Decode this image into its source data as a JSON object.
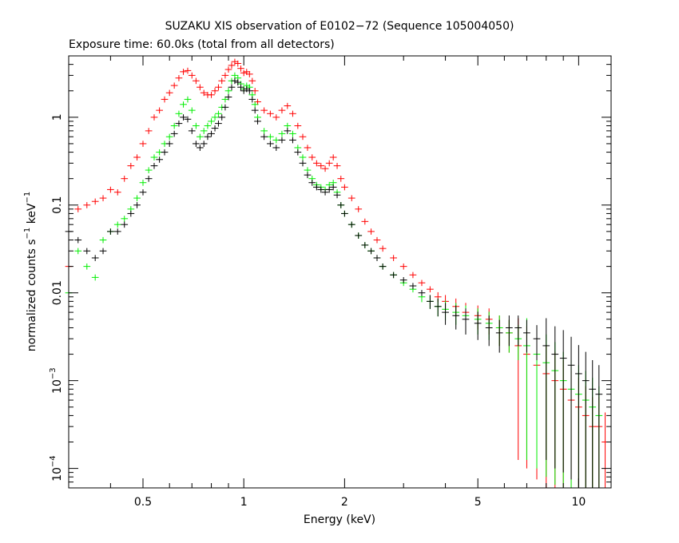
{
  "chart_data": {
    "type": "scatter",
    "title": "SUZAKU XIS observation of E0102−72 (Sequence 105004050)",
    "subtitle": "Exposure time: 60.0ks (total from all detectors)",
    "xlabel": "Energy (keV)",
    "ylabel": {
      "main": "normalized counts s",
      "exp1": "−1",
      "mid": " keV",
      "exp2": "−1"
    },
    "x_scale": "log",
    "y_scale": "log",
    "xlim": [
      0.3,
      12.5
    ],
    "ylim": [
      6e-05,
      5
    ],
    "x_ticks": [
      {
        "value": 0.5,
        "label": "0.5"
      },
      {
        "value": 1,
        "label": "1"
      },
      {
        "value": 2,
        "label": "2"
      },
      {
        "value": 5,
        "label": "5"
      },
      {
        "value": 10,
        "label": "10"
      }
    ],
    "y_ticks": [
      {
        "value": 1,
        "label": "1"
      },
      {
        "value": 0.1,
        "label": "0.1"
      },
      {
        "value": 0.01,
        "label": "0.01"
      },
      {
        "value": 0.001,
        "base": "10",
        "exp": "−3"
      },
      {
        "value": 0.0001,
        "base": "10",
        "exp": "−4"
      }
    ],
    "grid": false,
    "legend": "none",
    "series": [
      {
        "color": "#ff0000",
        "points": [
          [
            0.3,
            0.02
          ],
          [
            0.32,
            0.09
          ],
          [
            0.34,
            0.1
          ],
          [
            0.36,
            0.11
          ],
          [
            0.38,
            0.12
          ],
          [
            0.4,
            0.15
          ],
          [
            0.42,
            0.14
          ],
          [
            0.44,
            0.2
          ],
          [
            0.46,
            0.28
          ],
          [
            0.48,
            0.35
          ],
          [
            0.5,
            0.5
          ],
          [
            0.52,
            0.7
          ],
          [
            0.54,
            1.0
          ],
          [
            0.56,
            1.2
          ],
          [
            0.58,
            1.6
          ],
          [
            0.6,
            1.9
          ],
          [
            0.62,
            2.3
          ],
          [
            0.64,
            2.8
          ],
          [
            0.66,
            3.3
          ],
          [
            0.68,
            3.4
          ],
          [
            0.7,
            3.0
          ],
          [
            0.72,
            2.6
          ],
          [
            0.74,
            2.2
          ],
          [
            0.76,
            1.9
          ],
          [
            0.78,
            1.8
          ],
          [
            0.8,
            1.8
          ],
          [
            0.82,
            2.0
          ],
          [
            0.84,
            2.2
          ],
          [
            0.86,
            2.6
          ],
          [
            0.88,
            3.0
          ],
          [
            0.9,
            3.5
          ],
          [
            0.92,
            3.9
          ],
          [
            0.94,
            4.3
          ],
          [
            0.96,
            4.1
          ],
          [
            0.98,
            3.6
          ],
          [
            1.0,
            3.2
          ],
          [
            1.02,
            3.3
          ],
          [
            1.04,
            3.1
          ],
          [
            1.06,
            2.6
          ],
          [
            1.08,
            2.0
          ],
          [
            1.1,
            1.5
          ],
          [
            1.15,
            1.2
          ],
          [
            1.2,
            1.1
          ],
          [
            1.25,
            1.0
          ],
          [
            1.3,
            1.2
          ],
          [
            1.35,
            1.35
          ],
          [
            1.4,
            1.1
          ],
          [
            1.45,
            0.8
          ],
          [
            1.5,
            0.6
          ],
          [
            1.55,
            0.45
          ],
          [
            1.6,
            0.35
          ],
          [
            1.65,
            0.3
          ],
          [
            1.7,
            0.28
          ],
          [
            1.75,
            0.26
          ],
          [
            1.8,
            0.3
          ],
          [
            1.85,
            0.35
          ],
          [
            1.9,
            0.28
          ],
          [
            1.95,
            0.2
          ],
          [
            2.0,
            0.16
          ],
          [
            2.1,
            0.12
          ],
          [
            2.2,
            0.09
          ],
          [
            2.3,
            0.065
          ],
          [
            2.4,
            0.05
          ],
          [
            2.5,
            0.04
          ],
          [
            2.6,
            0.032
          ],
          [
            2.8,
            0.025
          ],
          [
            3.0,
            0.02
          ],
          [
            3.2,
            0.016
          ],
          [
            3.4,
            0.013
          ],
          [
            3.6,
            0.011
          ],
          [
            3.8,
            0.009
          ],
          [
            4.0,
            0.008
          ],
          [
            4.3,
            0.007
          ],
          [
            4.6,
            0.006
          ],
          [
            5.0,
            0.0055
          ],
          [
            5.4,
            0.005
          ],
          [
            5.8,
            0.004
          ],
          [
            6.2,
            0.0035
          ],
          [
            6.6,
            0.0025
          ],
          [
            7.0,
            0.002
          ],
          [
            7.5,
            0.0015
          ],
          [
            8.0,
            0.0012
          ],
          [
            8.5,
            0.001
          ],
          [
            9.0,
            0.0008
          ],
          [
            9.5,
            0.0006
          ],
          [
            10.0,
            0.0005
          ],
          [
            10.5,
            0.0004
          ],
          [
            11.0,
            0.0003
          ],
          [
            11.5,
            0.0003
          ],
          [
            12.0,
            0.0002
          ]
        ]
      },
      {
        "color": "#00ee00",
        "points": [
          [
            0.3,
            0.01
          ],
          [
            0.32,
            0.03
          ],
          [
            0.34,
            0.02
          ],
          [
            0.36,
            0.015
          ],
          [
            0.38,
            0.04
          ],
          [
            0.4,
            0.05
          ],
          [
            0.42,
            0.06
          ],
          [
            0.44,
            0.07
          ],
          [
            0.46,
            0.09
          ],
          [
            0.48,
            0.12
          ],
          [
            0.5,
            0.18
          ],
          [
            0.52,
            0.25
          ],
          [
            0.54,
            0.35
          ],
          [
            0.56,
            0.4
          ],
          [
            0.58,
            0.5
          ],
          [
            0.6,
            0.6
          ],
          [
            0.62,
            0.8
          ],
          [
            0.64,
            1.1
          ],
          [
            0.66,
            1.4
          ],
          [
            0.68,
            1.6
          ],
          [
            0.7,
            1.2
          ],
          [
            0.72,
            0.8
          ],
          [
            0.74,
            0.6
          ],
          [
            0.76,
            0.7
          ],
          [
            0.78,
            0.8
          ],
          [
            0.8,
            0.9
          ],
          [
            0.82,
            1.0
          ],
          [
            0.84,
            1.1
          ],
          [
            0.86,
            1.3
          ],
          [
            0.88,
            1.6
          ],
          [
            0.9,
            2.0
          ],
          [
            0.92,
            2.6
          ],
          [
            0.94,
            3.0
          ],
          [
            0.96,
            2.8
          ],
          [
            0.98,
            2.4
          ],
          [
            1.0,
            2.1
          ],
          [
            1.02,
            2.3
          ],
          [
            1.04,
            2.2
          ],
          [
            1.06,
            1.8
          ],
          [
            1.08,
            1.4
          ],
          [
            1.1,
            1.0
          ],
          [
            1.15,
            0.7
          ],
          [
            1.2,
            0.6
          ],
          [
            1.25,
            0.55
          ],
          [
            1.3,
            0.65
          ],
          [
            1.35,
            0.8
          ],
          [
            1.4,
            0.65
          ],
          [
            1.45,
            0.45
          ],
          [
            1.5,
            0.35
          ],
          [
            1.55,
            0.25
          ],
          [
            1.6,
            0.2
          ],
          [
            1.65,
            0.17
          ],
          [
            1.7,
            0.16
          ],
          [
            1.75,
            0.15
          ],
          [
            1.8,
            0.17
          ],
          [
            1.85,
            0.18
          ],
          [
            1.9,
            0.14
          ],
          [
            1.95,
            0.1
          ],
          [
            2.0,
            0.08
          ],
          [
            2.1,
            0.06
          ],
          [
            2.2,
            0.045
          ],
          [
            2.3,
            0.035
          ],
          [
            2.4,
            0.03
          ],
          [
            2.5,
            0.025
          ],
          [
            2.6,
            0.02
          ],
          [
            2.8,
            0.016
          ],
          [
            3.0,
            0.013
          ],
          [
            3.2,
            0.011
          ],
          [
            3.4,
            0.009
          ],
          [
            3.6,
            0.008
          ],
          [
            3.8,
            0.007
          ],
          [
            4.0,
            0.0065
          ],
          [
            4.3,
            0.006
          ],
          [
            4.6,
            0.0055
          ],
          [
            5.0,
            0.005
          ],
          [
            5.4,
            0.0045
          ],
          [
            5.8,
            0.004
          ],
          [
            6.2,
            0.0035
          ],
          [
            6.6,
            0.003
          ],
          [
            7.0,
            0.0025
          ],
          [
            7.5,
            0.002
          ],
          [
            8.0,
            0.0016
          ],
          [
            8.5,
            0.0013
          ],
          [
            9.0,
            0.001
          ],
          [
            9.5,
            0.0008
          ],
          [
            10.0,
            0.0007
          ],
          [
            10.5,
            0.0006
          ],
          [
            11.0,
            0.0005
          ],
          [
            11.5,
            0.0004
          ]
        ]
      },
      {
        "color": "#000000",
        "points": [
          [
            0.3,
            0.05
          ],
          [
            0.32,
            0.04
          ],
          [
            0.34,
            0.03
          ],
          [
            0.36,
            0.025
          ],
          [
            0.38,
            0.03
          ],
          [
            0.4,
            0.05
          ],
          [
            0.42,
            0.05
          ],
          [
            0.44,
            0.06
          ],
          [
            0.46,
            0.08
          ],
          [
            0.48,
            0.1
          ],
          [
            0.5,
            0.14
          ],
          [
            0.52,
            0.2
          ],
          [
            0.54,
            0.28
          ],
          [
            0.56,
            0.33
          ],
          [
            0.58,
            0.4
          ],
          [
            0.6,
            0.5
          ],
          [
            0.62,
            0.65
          ],
          [
            0.64,
            0.85
          ],
          [
            0.66,
            1.0
          ],
          [
            0.68,
            0.95
          ],
          [
            0.7,
            0.7
          ],
          [
            0.72,
            0.5
          ],
          [
            0.74,
            0.45
          ],
          [
            0.76,
            0.5
          ],
          [
            0.78,
            0.6
          ],
          [
            0.8,
            0.65
          ],
          [
            0.82,
            0.75
          ],
          [
            0.84,
            0.85
          ],
          [
            0.86,
            1.0
          ],
          [
            0.88,
            1.3
          ],
          [
            0.9,
            1.7
          ],
          [
            0.92,
            2.2
          ],
          [
            0.94,
            2.6
          ],
          [
            0.96,
            2.5
          ],
          [
            0.98,
            2.2
          ],
          [
            1.0,
            2.0
          ],
          [
            1.02,
            2.1
          ],
          [
            1.04,
            2.0
          ],
          [
            1.06,
            1.6
          ],
          [
            1.08,
            1.2
          ],
          [
            1.1,
            0.9
          ],
          [
            1.15,
            0.6
          ],
          [
            1.2,
            0.5
          ],
          [
            1.25,
            0.45
          ],
          [
            1.3,
            0.55
          ],
          [
            1.35,
            0.7
          ],
          [
            1.4,
            0.55
          ],
          [
            1.45,
            0.4
          ],
          [
            1.5,
            0.3
          ],
          [
            1.55,
            0.22
          ],
          [
            1.6,
            0.18
          ],
          [
            1.65,
            0.16
          ],
          [
            1.7,
            0.15
          ],
          [
            1.75,
            0.14
          ],
          [
            1.8,
            0.15
          ],
          [
            1.85,
            0.16
          ],
          [
            1.9,
            0.13
          ],
          [
            1.95,
            0.1
          ],
          [
            2.0,
            0.08
          ],
          [
            2.1,
            0.06
          ],
          [
            2.2,
            0.045
          ],
          [
            2.3,
            0.035
          ],
          [
            2.4,
            0.03
          ],
          [
            2.5,
            0.025
          ],
          [
            2.6,
            0.02
          ],
          [
            2.8,
            0.016
          ],
          [
            3.0,
            0.014
          ],
          [
            3.2,
            0.012
          ],
          [
            3.4,
            0.01
          ],
          [
            3.6,
            0.008
          ],
          [
            3.8,
            0.007
          ],
          [
            4.0,
            0.006
          ],
          [
            4.3,
            0.0055
          ],
          [
            4.6,
            0.005
          ],
          [
            5.0,
            0.0045
          ],
          [
            5.4,
            0.004
          ],
          [
            5.8,
            0.0035
          ],
          [
            6.2,
            0.004
          ],
          [
            6.6,
            0.004
          ],
          [
            7.0,
            0.0035
          ],
          [
            7.5,
            0.003
          ],
          [
            8.0,
            0.0025
          ],
          [
            8.5,
            0.002
          ],
          [
            9.0,
            0.0018
          ],
          [
            9.5,
            0.0015
          ],
          [
            10.0,
            0.0012
          ],
          [
            10.5,
            0.001
          ],
          [
            11.0,
            0.0008
          ],
          [
            11.5,
            0.0007
          ]
        ]
      }
    ]
  }
}
